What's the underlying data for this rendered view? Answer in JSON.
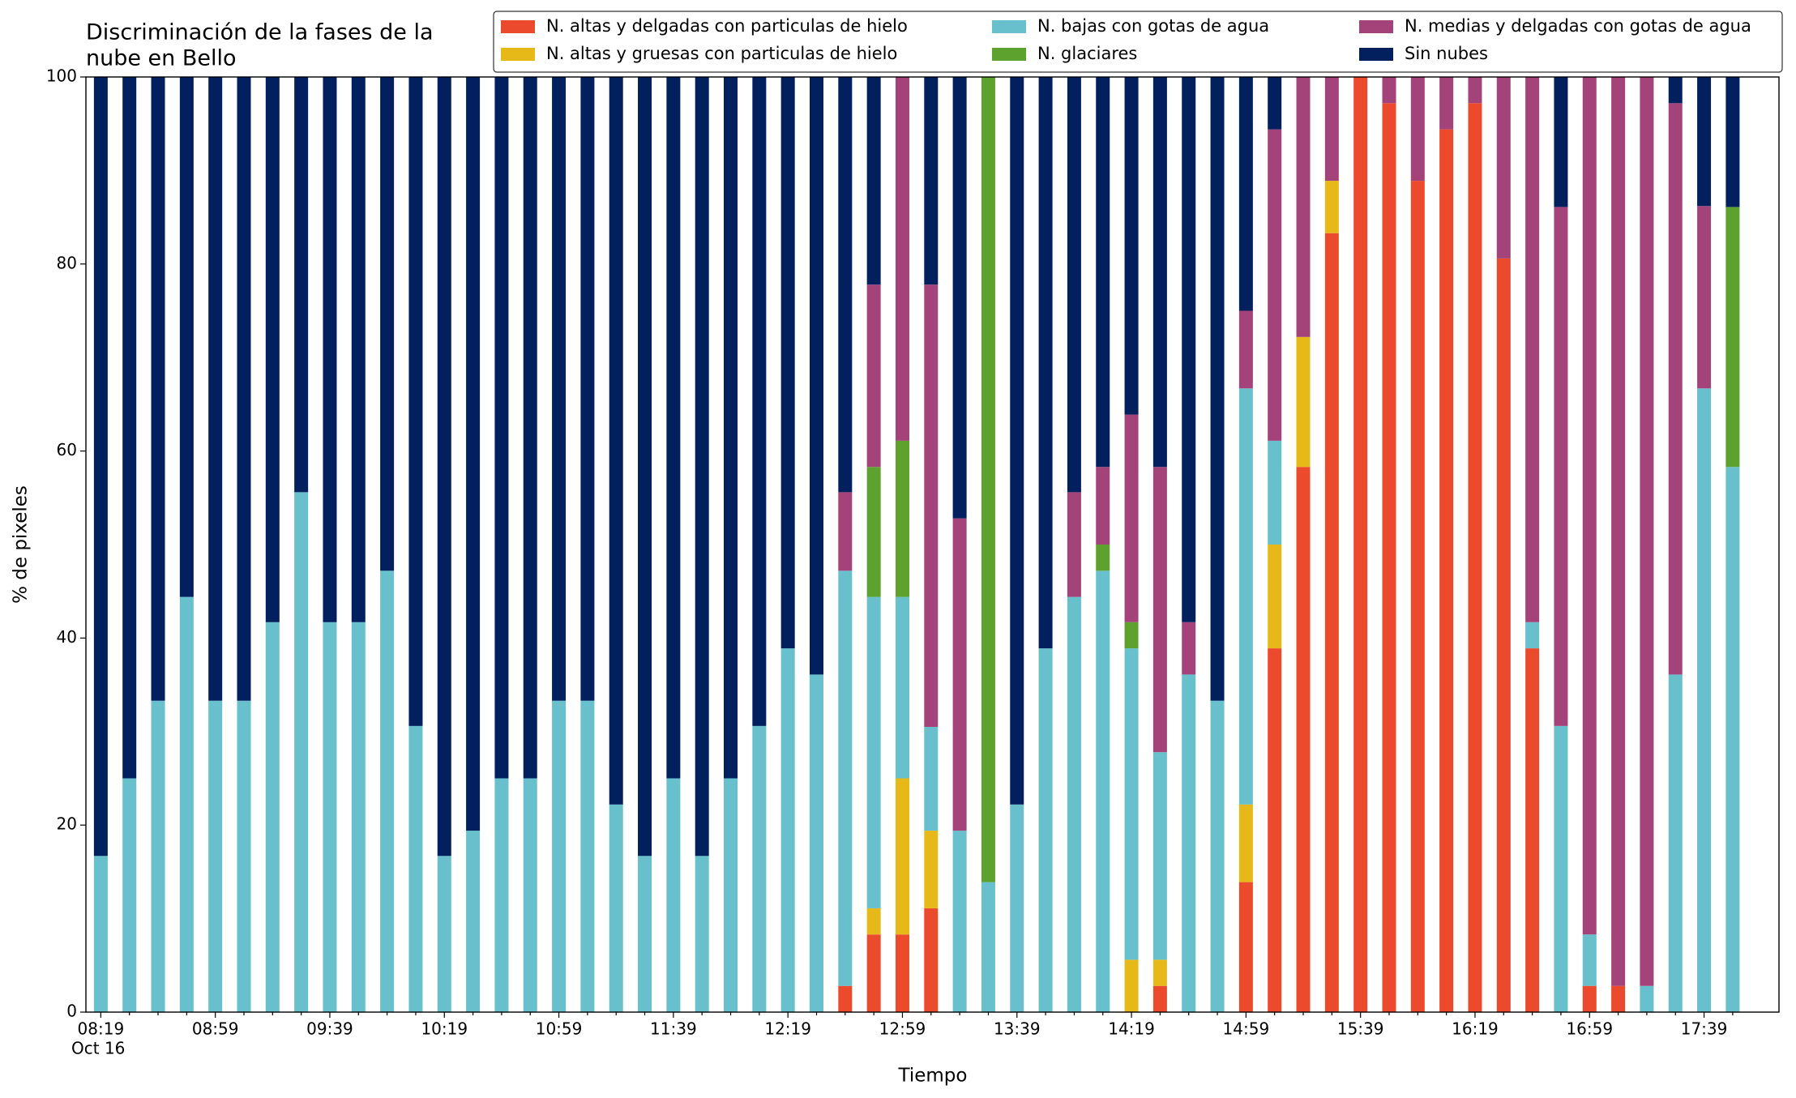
{
  "chart_data": {
    "type": "stacked_bar",
    "title": [
      "Discriminación de la fases de la",
      "nube en Bello"
    ],
    "xlabel": "Tiempo",
    "ylabel": "% de pixeles",
    "x_date_label": "Oct 16",
    "categories": [
      "08:19",
      null,
      null,
      null,
      "08:59",
      null,
      null,
      null,
      "09:39",
      null,
      null,
      null,
      "10:19",
      null,
      null,
      null,
      "10:59",
      null,
      null,
      null,
      "11:39",
      null,
      null,
      null,
      "12:19",
      null,
      null,
      null,
      "12:59",
      null,
      null,
      null,
      "13:39",
      null,
      null,
      null,
      "14:19",
      null,
      null,
      null,
      "14:59",
      null,
      null,
      null,
      "15:39",
      null,
      null,
      null,
      "16:19",
      null,
      null,
      null,
      "16:59",
      null,
      null,
      null,
      "17:39",
      null
    ],
    "ylim": [
      0,
      100
    ],
    "yticks": [
      0,
      20,
      40,
      60,
      80,
      100
    ],
    "legend": "top-right",
    "series": [
      {
        "name": "N. altas y delgadas con particulas de hielo",
        "color": "#ec4a2c",
        "values": [
          0,
          0,
          0,
          0,
          0,
          0,
          0,
          0,
          0,
          0,
          0,
          0,
          0,
          0,
          0,
          0,
          0,
          0,
          0,
          0,
          0,
          0,
          0,
          0,
          0,
          0,
          2.8,
          8.3,
          8.3,
          11.1,
          0,
          0,
          0,
          0,
          0,
          0,
          0,
          2.8,
          0,
          0,
          13.9,
          38.9,
          58.3,
          83.3,
          100,
          97.2,
          88.9,
          94.4,
          97.2,
          80.6,
          38.9,
          0,
          2.8,
          2.8,
          0,
          0,
          0,
          0
        ]
      },
      {
        "name": "N. altas y gruesas con particulas de hielo",
        "color": "#e6b818",
        "values": [
          0,
          0,
          0,
          0,
          0,
          0,
          0,
          0,
          0,
          0,
          0,
          0,
          0,
          0,
          0,
          0,
          0,
          0,
          0,
          0,
          0,
          0,
          0,
          0,
          0,
          0,
          0,
          2.8,
          16.7,
          8.3,
          0,
          0,
          0,
          0,
          0,
          0,
          5.6,
          2.8,
          0,
          0,
          8.3,
          11.1,
          13.9,
          5.6,
          0,
          0,
          0,
          0,
          0,
          0,
          0,
          0,
          0,
          0,
          0,
          0,
          0,
          0
        ]
      },
      {
        "name": "N. bajas con gotas de agua",
        "color": "#67c0cc",
        "values": [
          16.7,
          25,
          33.3,
          44.4,
          33.3,
          33.3,
          41.7,
          55.6,
          41.7,
          41.7,
          47.2,
          30.6,
          16.7,
          19.4,
          25,
          25,
          33.3,
          33.3,
          22.2,
          16.7,
          25,
          16.7,
          25,
          30.6,
          38.9,
          36.1,
          44.4,
          33.3,
          19.4,
          11.1,
          19.4,
          13.9,
          22.2,
          38.9,
          44.4,
          47.2,
          33.3,
          22.2,
          36.1,
          33.3,
          44.5,
          11.1,
          0,
          0,
          0,
          0,
          0,
          0,
          0,
          0,
          2.8,
          30.6,
          5.5,
          0,
          2.8,
          36.1,
          66.7,
          58.3
        ]
      },
      {
        "name": "N. glaciares",
        "color": "#5da22e",
        "values": [
          0,
          0,
          0,
          0,
          0,
          0,
          0,
          0,
          0,
          0,
          0,
          0,
          0,
          0,
          0,
          0,
          0,
          0,
          0,
          0,
          0,
          0,
          0,
          0,
          0,
          0,
          0,
          13.9,
          16.7,
          0,
          0,
          86.1,
          0,
          0,
          0,
          2.8,
          2.8,
          0,
          0,
          0,
          0,
          0,
          0,
          0,
          0,
          0,
          0,
          0,
          0,
          0,
          0,
          0,
          0,
          0,
          0,
          0,
          0,
          27.8
        ]
      },
      {
        "name": "N. medias y delgadas con gotas de agua",
        "color": "#a4437a",
        "values": [
          0,
          0,
          0,
          0,
          0,
          0,
          0,
          0,
          0,
          0,
          0,
          0,
          0,
          0,
          0,
          0,
          0,
          0,
          0,
          0,
          0,
          0,
          0,
          0,
          0,
          0,
          8.4,
          19.5,
          38.9,
          47.3,
          33.4,
          0,
          0,
          0,
          11.2,
          8.3,
          22.2,
          30.5,
          5.6,
          0,
          8.3,
          33.3,
          27.8,
          11.1,
          0,
          2.8,
          11.1,
          5.6,
          2.8,
          19.4,
          58.3,
          55.5,
          91.7,
          97.2,
          97.2,
          61.1,
          19.5,
          0
        ]
      },
      {
        "name": "Sin nubes",
        "color": "#02205e",
        "values": [
          83.3,
          75,
          66.7,
          55.6,
          66.7,
          66.7,
          58.3,
          44.4,
          58.3,
          58.3,
          52.8,
          69.4,
          83.3,
          80.6,
          75,
          75,
          66.7,
          66.7,
          77.8,
          83.3,
          75,
          83.3,
          75,
          69.4,
          61.1,
          63.9,
          44.4,
          22.2,
          0,
          22.2,
          47.2,
          0,
          77.8,
          61.1,
          44.4,
          41.7,
          36.1,
          41.7,
          58.3,
          66.7,
          25,
          5.6,
          0,
          0,
          0,
          0,
          0,
          0,
          0,
          0,
          0,
          13.9,
          0,
          0,
          0,
          2.8,
          13.8,
          13.9
        ]
      }
    ]
  }
}
